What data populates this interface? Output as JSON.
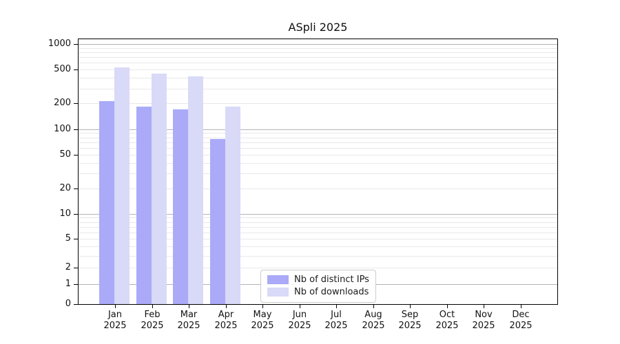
{
  "chart_data": {
    "type": "bar",
    "title": "ASpli 2025",
    "categories": [
      "Jan",
      "Feb",
      "Mar",
      "Apr",
      "May",
      "Jun",
      "Jul",
      "Aug",
      "Sep",
      "Oct",
      "Nov",
      "Dec"
    ],
    "year_label": "2025",
    "series": [
      {
        "name": "Nb of distinct IPs",
        "color": "#aaaaf8",
        "values": [
          215,
          185,
          170,
          77,
          null,
          null,
          null,
          null,
          null,
          null,
          null,
          null
        ]
      },
      {
        "name": "Nb of downloads",
        "color": "#d9d9f8",
        "values": [
          530,
          450,
          420,
          183,
          null,
          null,
          null,
          null,
          null,
          null,
          null,
          null
        ]
      }
    ],
    "yticks": [
      0,
      1,
      2,
      5,
      10,
      20,
      50,
      100,
      200,
      500,
      1000
    ],
    "major_gridlines": [
      1,
      10,
      100,
      1000
    ],
    "scale": "symlog",
    "ylim": [
      0,
      1200
    ],
    "grid": "horizontal major+minor",
    "legend_position": "lower center inside axes",
    "colors": {
      "minor_grid": "#e8e8e8",
      "major_grid": "#b3b3b3",
      "spine": "#000000",
      "legend_border": "#cccccc"
    }
  }
}
